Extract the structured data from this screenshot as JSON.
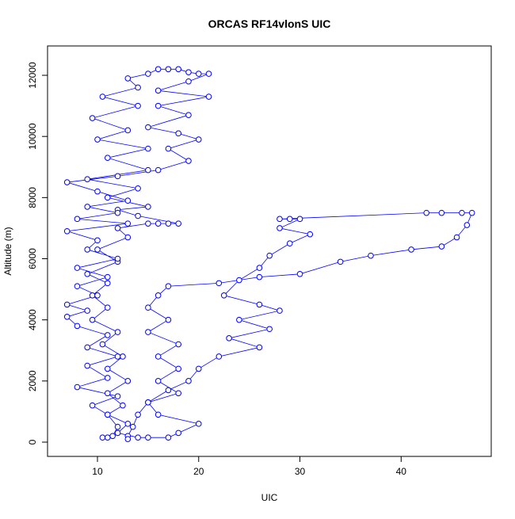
{
  "chart_data": {
    "type": "scatter",
    "title": "ORCAS RF14vlonS UIC",
    "x_label": "UIC",
    "y_label": "Altitude (m)",
    "xlim": [
      5.07,
      48.9
    ],
    "ylim": [
      -467,
      12960
    ],
    "xticks": [
      10,
      20,
      30,
      40
    ],
    "yticks": [
      0,
      2000,
      4000,
      6000,
      8000,
      10000,
      12000
    ],
    "grid": false,
    "connect_points": true,
    "series": [
      {
        "color": "#0000ff",
        "x": [
          10.5,
          11,
          11.5,
          12,
          11,
          12.5,
          11,
          13,
          11,
          12.5,
          10.5,
          12,
          9.5,
          11,
          9.5,
          11,
          9,
          12,
          10,
          13,
          12,
          15,
          16,
          17,
          18,
          14,
          12,
          15,
          11,
          14,
          9,
          15,
          11,
          15,
          10,
          13,
          9.5,
          14,
          10.5,
          14,
          13,
          15,
          16,
          17,
          18,
          19,
          20,
          21,
          19,
          16,
          21,
          16,
          19,
          15,
          18,
          20,
          17,
          19,
          16,
          12,
          7,
          10,
          13,
          9,
          12,
          8,
          13,
          7,
          10,
          9,
          12,
          8,
          11,
          8,
          10,
          7,
          9,
          7,
          8,
          11,
          9,
          12,
          9,
          11,
          8,
          12,
          9.5,
          11,
          13,
          12,
          14,
          15,
          17,
          18,
          20,
          16,
          15,
          18,
          16,
          18,
          16,
          18,
          15,
          17,
          15,
          16,
          17,
          22,
          26,
          30,
          34,
          37,
          41,
          44,
          45.5,
          46.5,
          47,
          46,
          44,
          42.5,
          28,
          29,
          30,
          28,
          31,
          29,
          27,
          26,
          24,
          22.5,
          26,
          28,
          24,
          27,
          23,
          26,
          22,
          20,
          19,
          17,
          15,
          14,
          13.5,
          13,
          13
        ],
        "y": [
          150,
          150,
          200,
          500,
          900,
          1200,
          1600,
          2000,
          2400,
          2800,
          3200,
          3600,
          4000,
          4400,
          4800,
          5200,
          5500,
          5900,
          6300,
          6700,
          7000,
          7150,
          7150,
          7150,
          7150,
          7400,
          7600,
          7700,
          8000,
          8300,
          8600,
          8900,
          9300,
          9600,
          9900,
          10200,
          10600,
          11000,
          11300,
          11600,
          11900,
          12050,
          12200,
          12200,
          12200,
          12100,
          12050,
          12050,
          11800,
          11500,
          11300,
          11000,
          10700,
          10300,
          10100,
          9900,
          9600,
          9200,
          8900,
          8700,
          8500,
          8200,
          7900,
          7700,
          7500,
          7300,
          7150,
          6900,
          6600,
          6300,
          6000,
          5700,
          5400,
          5100,
          4800,
          4500,
          4300,
          4100,
          3800,
          3500,
          3100,
          2800,
          2500,
          2100,
          1800,
          1500,
          1200,
          900,
          600,
          300,
          150,
          150,
          150,
          300,
          600,
          900,
          1300,
          1600,
          2000,
          2400,
          2800,
          3200,
          3600,
          4000,
          4400,
          4800,
          5100,
          5200,
          5400,
          5500,
          5900,
          6100,
          6300,
          6400,
          6700,
          7100,
          7500,
          7500,
          7500,
          7500,
          7300,
          7300,
          7300,
          7000,
          6800,
          6500,
          6100,
          5700,
          5300,
          4800,
          4500,
          4300,
          4000,
          3700,
          3400,
          3100,
          2800,
          2400,
          2000,
          1700,
          1300,
          900,
          500,
          200,
          100
        ]
      }
    ]
  }
}
